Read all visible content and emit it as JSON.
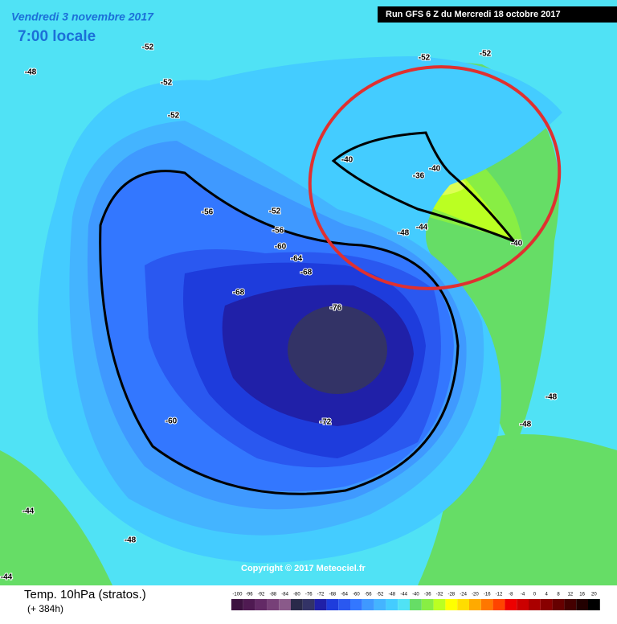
{
  "header": {
    "date": "Vendredi 3 novembre 2017",
    "time": "7:00 locale",
    "run": "Run GFS 6 Z du Mercredi 18 octobre 2017"
  },
  "map": {
    "copyright": "Copyright © 2017 Meteociel.fr",
    "contour_labels": [
      -76,
      -72,
      -68,
      -68,
      -64,
      -60,
      -60,
      -56,
      -56,
      -52,
      -52,
      -52,
      -52,
      -48,
      -48,
      -44,
      -40,
      -40,
      -36,
      -40,
      -48,
      -48,
      -44,
      -48,
      -44,
      -52,
      -52
    ]
  },
  "footer": {
    "title": "Temp. 10hPa (stratos.)",
    "lead": "(+ 384h)"
  },
  "legend": {
    "ticks": [
      -100,
      -96,
      -92,
      -88,
      -84,
      -80,
      -76,
      -72,
      -68,
      -64,
      -60,
      -56,
      -52,
      -48,
      -44,
      -40,
      -36,
      -32,
      -28,
      -24,
      -20,
      -16,
      -12,
      -8,
      -4,
      0,
      4,
      8,
      12,
      16,
      20
    ],
    "colors": [
      "#3d1240",
      "#4f1a52",
      "#632a66",
      "#774078",
      "#8a5a8a",
      "#2a2a4a",
      "#333366",
      "#2020a8",
      "#1e3cdc",
      "#2a58f0",
      "#3377ff",
      "#3f99ff",
      "#44b4ff",
      "#44ccff",
      "#50e2f5",
      "#66dd66",
      "#88ee44",
      "#bbff22",
      "#ffff00",
      "#ffdd00",
      "#ffaa00",
      "#ff7700",
      "#ff4400",
      "#ee0000",
      "#cc0000",
      "#aa0000",
      "#880000",
      "#660000",
      "#440000",
      "#220000",
      "#000000"
    ]
  }
}
